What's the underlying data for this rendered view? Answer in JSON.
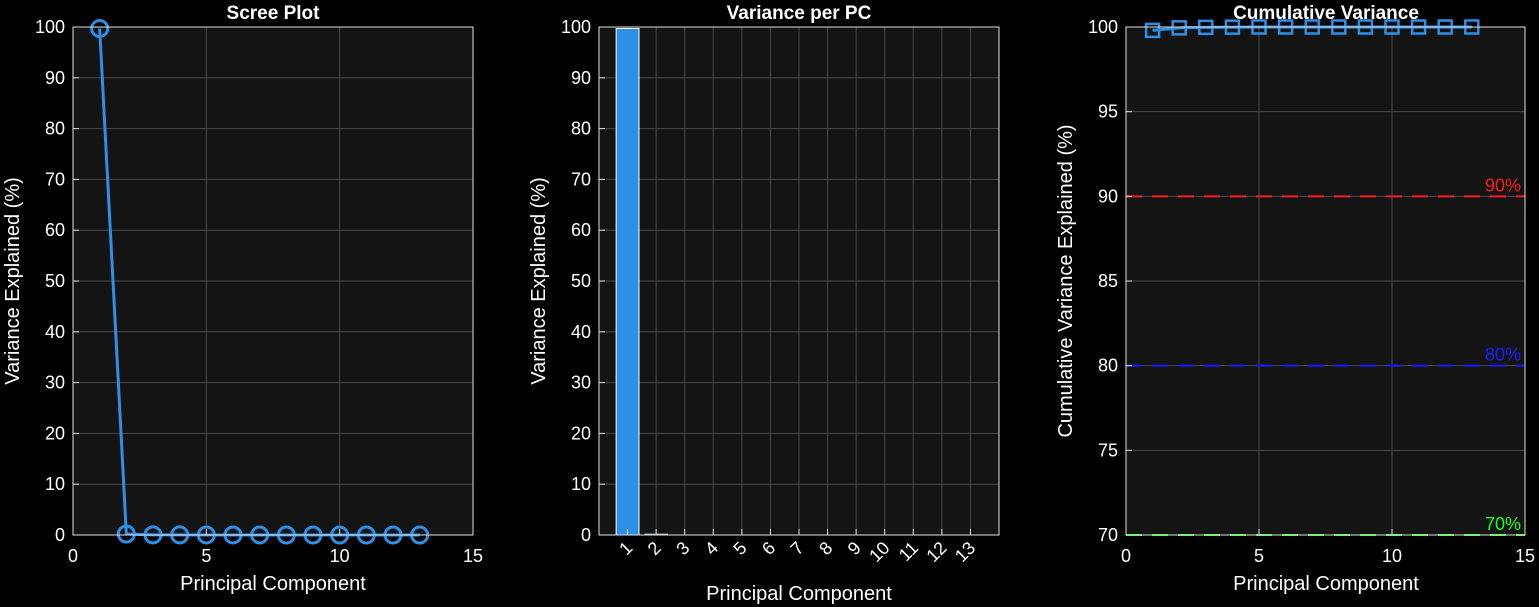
{
  "colors": {
    "figure_bg": "#000000",
    "axes_bg": "#141414",
    "grid": "#4a4a4a",
    "axis_line": "#e0e0e0",
    "text": "#ffffff",
    "series": "#2e8fe6",
    "line_90": "#ff1a1a",
    "line_80": "#1a1aff",
    "line_70": "#1aff1a"
  },
  "chart_data": [
    {
      "type": "line",
      "title": "Scree Plot",
      "xlabel": "Principal Component",
      "ylabel": "Variance Explained (%)",
      "xlim": [
        0,
        15
      ],
      "ylim": [
        0,
        100
      ],
      "xticks": [
        0,
        5,
        10,
        15
      ],
      "xtick_labels": [
        "0",
        "5",
        "10",
        "15"
      ],
      "yticks": [
        0,
        10,
        20,
        30,
        40,
        50,
        60,
        70,
        80,
        90,
        100
      ],
      "ytick_labels": [
        "0",
        "10",
        "20",
        "30",
        "40",
        "50",
        "60",
        "70",
        "80",
        "90",
        "100"
      ],
      "grid": true,
      "series": [
        {
          "marker": "circle",
          "x": [
            1,
            2,
            3,
            4,
            5,
            6,
            7,
            8,
            9,
            10,
            11,
            12,
            13
          ],
          "values": [
            99.7,
            0.2,
            0.03,
            0.02,
            0.01,
            0.01,
            0.01,
            0,
            0,
            0,
            0,
            0,
            0
          ]
        }
      ]
    },
    {
      "type": "bar",
      "title": "Variance per PC",
      "xlabel": "Principal Component",
      "ylabel": "Variance Explained (%)",
      "xlim": [
        0,
        14
      ],
      "ylim": [
        0,
        100
      ],
      "categories": [
        "1",
        "2",
        "3",
        "4",
        "5",
        "6",
        "7",
        "8",
        "9",
        "10",
        "11",
        "12",
        "13"
      ],
      "values": [
        99.7,
        0.2,
        0.03,
        0.02,
        0.01,
        0.01,
        0.01,
        0,
        0,
        0,
        0,
        0,
        0
      ],
      "yticks": [
        0,
        10,
        20,
        30,
        40,
        50,
        60,
        70,
        80,
        90,
        100
      ],
      "ytick_labels": [
        "0",
        "10",
        "20",
        "30",
        "40",
        "50",
        "60",
        "70",
        "80",
        "90",
        "100"
      ],
      "grid": true
    },
    {
      "type": "line",
      "title": "Cumulative Variance",
      "xlabel": "Principal Component",
      "ylabel": "Cumulative Variance Explained (%)",
      "xlim": [
        0,
        15
      ],
      "ylim": [
        70,
        100
      ],
      "xticks": [
        0,
        5,
        10,
        15
      ],
      "xtick_labels": [
        "0",
        "5",
        "10",
        "15"
      ],
      "yticks": [
        70,
        75,
        80,
        85,
        90,
        95,
        100
      ],
      "ytick_labels": [
        "70",
        "75",
        "80",
        "85",
        "90",
        "95",
        "100"
      ],
      "grid": true,
      "series": [
        {
          "marker": "square",
          "x": [
            1,
            2,
            3,
            4,
            5,
            6,
            7,
            8,
            9,
            10,
            11,
            12,
            13
          ],
          "values": [
            99.8,
            99.95,
            99.98,
            99.99,
            100,
            100,
            100,
            100,
            100,
            100,
            100,
            100,
            100
          ]
        }
      ],
      "reference_lines": [
        {
          "y": 90,
          "label": "90%",
          "color": "#ff1a1a"
        },
        {
          "y": 80,
          "label": "80%",
          "color": "#1a1aff"
        },
        {
          "y": 70,
          "label": "70%",
          "color": "#1aff1a"
        }
      ]
    }
  ]
}
